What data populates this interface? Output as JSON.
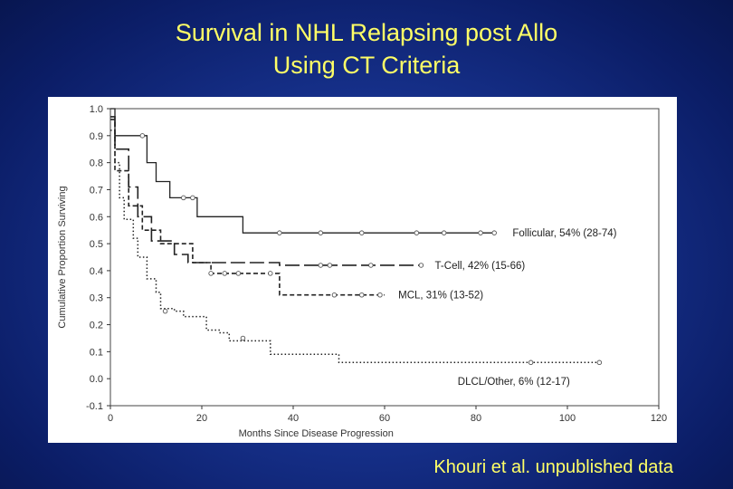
{
  "slide": {
    "title_line1": "Survival in NHL Relapsing post Allo",
    "title_line2": "Using CT Criteria",
    "footnote": "Khouri et al. unpublished data",
    "colors": {
      "background": "#1a3a9a",
      "title_text": "#ffff66",
      "plot_background": "#ffffff"
    }
  },
  "chart_data": {
    "type": "line",
    "xlabel": "Months Since Disease Progression",
    "ylabel": "Cumulative Proportion Surviving",
    "xlim": [
      0,
      120
    ],
    "ylim": [
      -0.1,
      1.0
    ],
    "xticks": [
      0,
      20,
      40,
      60,
      80,
      100,
      120
    ],
    "yticks": [
      1.0,
      0.9,
      0.8,
      0.7,
      0.6,
      0.5,
      0.4,
      0.3,
      0.2,
      0.1,
      0.0,
      -0.1
    ],
    "ytick_labels": [
      "1.0",
      "0.9",
      "0.8",
      "0.7",
      "0.6",
      "0.5",
      "0.4",
      "0.3",
      "0.2",
      "0.1",
      "0.0",
      "-0.1"
    ],
    "grid": false,
    "series": [
      {
        "name": "Follicular, 54% (28-74)",
        "style": "solid",
        "steps": [
          [
            0,
            1.0
          ],
          [
            1,
            0.9
          ],
          [
            8,
            0.9
          ],
          [
            8,
            0.8
          ],
          [
            10,
            0.8
          ],
          [
            10,
            0.73
          ],
          [
            13,
            0.73
          ],
          [
            13,
            0.67
          ],
          [
            19,
            0.67
          ],
          [
            19,
            0.6
          ],
          [
            29,
            0.6
          ],
          [
            29,
            0.54
          ],
          [
            84,
            0.54
          ]
        ],
        "censored": [
          [
            7,
            0.9
          ],
          [
            16,
            0.67
          ],
          [
            18,
            0.67
          ],
          [
            37,
            0.54
          ],
          [
            46,
            0.54
          ],
          [
            55,
            0.54
          ],
          [
            67,
            0.54
          ],
          [
            73,
            0.54
          ],
          [
            81,
            0.54
          ],
          [
            84,
            0.54
          ]
        ],
        "label_x": 88,
        "label_y": 0.54
      },
      {
        "name": "T-Cell, 42% (15-66)",
        "style": "long-dash",
        "steps": [
          [
            0,
            0.97
          ],
          [
            1,
            0.85
          ],
          [
            4,
            0.85
          ],
          [
            4,
            0.71
          ],
          [
            6,
            0.71
          ],
          [
            6,
            0.6
          ],
          [
            9,
            0.6
          ],
          [
            9,
            0.51
          ],
          [
            14,
            0.51
          ],
          [
            14,
            0.46
          ],
          [
            17,
            0.46
          ],
          [
            17,
            0.43
          ],
          [
            37,
            0.43
          ],
          [
            37,
            0.42
          ],
          [
            68,
            0.42
          ]
        ],
        "censored": [
          [
            46,
            0.42
          ],
          [
            48,
            0.42
          ],
          [
            57,
            0.42
          ],
          [
            68,
            0.42
          ]
        ],
        "label_x": 71,
        "label_y": 0.42
      },
      {
        "name": "MCL, 31% (13-52)",
        "style": "short-dash",
        "steps": [
          [
            0,
            0.96
          ],
          [
            1,
            0.77
          ],
          [
            4,
            0.77
          ],
          [
            4,
            0.64
          ],
          [
            7,
            0.64
          ],
          [
            7,
            0.55
          ],
          [
            11,
            0.55
          ],
          [
            11,
            0.5
          ],
          [
            18,
            0.5
          ],
          [
            18,
            0.43
          ],
          [
            22,
            0.43
          ],
          [
            22,
            0.39
          ],
          [
            37,
            0.39
          ],
          [
            37,
            0.31
          ],
          [
            60,
            0.31
          ]
        ],
        "censored": [
          [
            22,
            0.39
          ],
          [
            25,
            0.39
          ],
          [
            28,
            0.39
          ],
          [
            35,
            0.39
          ],
          [
            49,
            0.31
          ],
          [
            55,
            0.31
          ],
          [
            59,
            0.31
          ]
        ],
        "label_x": 63,
        "label_y": 0.31
      },
      {
        "name": "DLCL/Other, 6% (12-17)",
        "style": "dotted",
        "steps": [
          [
            0,
            0.92
          ],
          [
            1,
            0.8
          ],
          [
            2,
            0.67
          ],
          [
            3,
            0.59
          ],
          [
            5,
            0.52
          ],
          [
            6,
            0.45
          ],
          [
            8,
            0.37
          ],
          [
            10,
            0.32
          ],
          [
            11,
            0.26
          ],
          [
            14,
            0.25
          ],
          [
            16,
            0.23
          ],
          [
            21,
            0.18
          ],
          [
            24,
            0.17
          ],
          [
            26,
            0.14
          ],
          [
            30,
            0.14
          ],
          [
            35,
            0.09
          ],
          [
            50,
            0.09
          ],
          [
            50,
            0.06
          ],
          [
            107,
            0.06
          ]
        ],
        "censored": [
          [
            12,
            0.25
          ],
          [
            29,
            0.15
          ],
          [
            92,
            0.06
          ],
          [
            107,
            0.06
          ]
        ],
        "label_x": 76,
        "label_y": -0.01
      }
    ]
  }
}
